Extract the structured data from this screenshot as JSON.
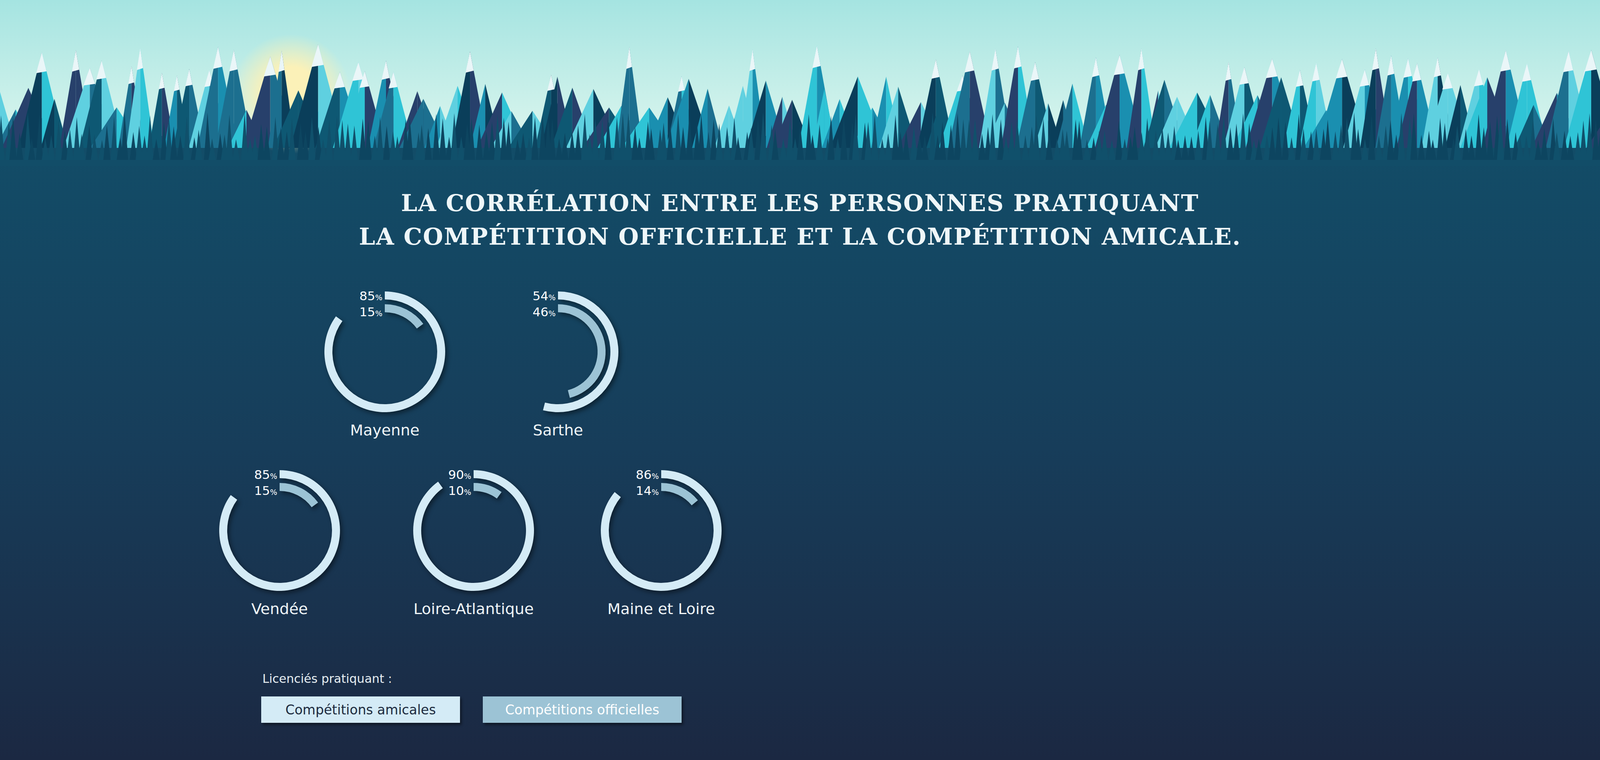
{
  "title": [
    "LA CORRÉLATION ENTRE LES PERSONNES PRATIQUANT",
    "LA COMPÉTITION OFFICIELLE ET LA COMPÉTITION AMICALE."
  ],
  "legend_title": "Licenciés pratiquant :",
  "series": [
    {
      "name": "Compétitions amicales",
      "color": "#d4ebf6"
    },
    {
      "name": "Compétitions officielles",
      "color": "#9cc3d5"
    }
  ],
  "chart_data": [
    {
      "type": "radial_bar",
      "title": "Mayenne",
      "values": [
        85,
        15
      ],
      "value_labels": [
        "85%",
        "15%"
      ],
      "ylim": [
        0,
        100
      ],
      "data_labels": true
    },
    {
      "type": "radial_bar",
      "title": "Sarthe",
      "values": [
        54,
        46
      ],
      "value_labels": [
        "54%",
        "46%"
      ],
      "ylim": [
        0,
        100
      ],
      "data_labels": true
    },
    {
      "type": "radial_bar",
      "title": "Vendée",
      "values": [
        85,
        15
      ],
      "value_labels": [
        "85%",
        "15%"
      ],
      "ylim": [
        0,
        100
      ],
      "data_labels": true
    },
    {
      "type": "radial_bar",
      "title": "Loire-Atlantique",
      "values": [
        90,
        10
      ],
      "value_labels": [
        "90%",
        "10%"
      ],
      "ylim": [
        0,
        100
      ],
      "data_labels": true
    },
    {
      "type": "radial_bar",
      "title": "Maine et Loire",
      "values": [
        86,
        14
      ],
      "value_labels": [
        "86%",
        "14%"
      ],
      "ylim": [
        0,
        100
      ],
      "data_labels": true
    }
  ]
}
